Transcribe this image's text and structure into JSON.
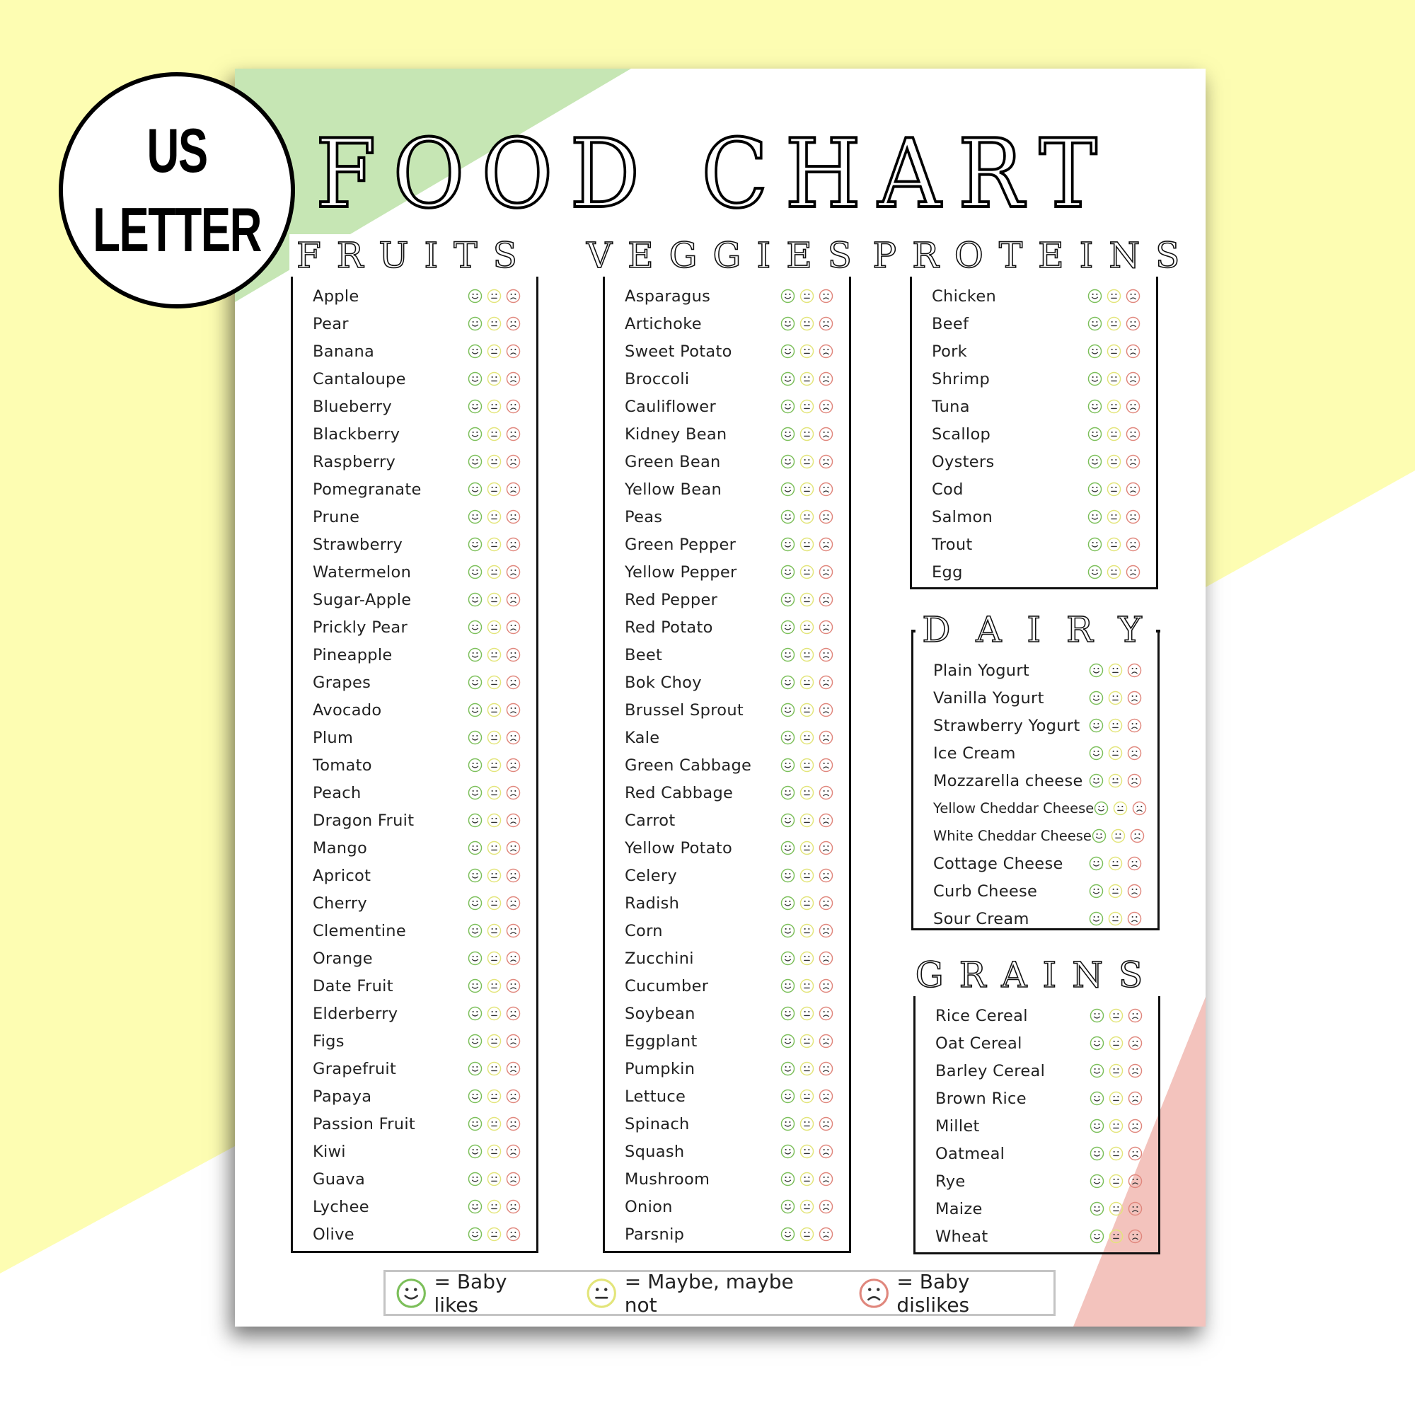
{
  "badge": {
    "line1": "US",
    "line2": "LETTER"
  },
  "title": "FOOD CHART",
  "colors": {
    "likes": "#7cbf5a",
    "maybe": "#e3e57a",
    "dislikes": "#e0877d",
    "background": "#fdfdb2",
    "accent_green": "#c6e6b4",
    "accent_pink": "#f3c3bd"
  },
  "sections": {
    "fruits": {
      "heading": "FRUITS",
      "items": [
        "Apple",
        "Pear",
        "Banana",
        "Cantaloupe",
        "Blueberry",
        "Blackberry",
        "Raspberry",
        "Pomegranate",
        "Prune",
        "Strawberry",
        "Watermelon",
        "Sugar-Apple",
        "Prickly Pear",
        "Pineapple",
        "Grapes",
        "Avocado",
        "Plum",
        "Tomato",
        "Peach",
        "Dragon Fruit",
        "Mango",
        "Apricot",
        "Cherry",
        "Clementine",
        "Orange",
        "Date Fruit",
        "Elderberry",
        "Figs",
        "Grapefruit",
        "Papaya",
        "Passion Fruit",
        "Kiwi",
        "Guava",
        "Lychee",
        "Olive"
      ]
    },
    "veggies": {
      "heading": "VEGGIES",
      "items": [
        "Asparagus",
        "Artichoke",
        "Sweet Potato",
        "Broccoli",
        "Cauliflower",
        "Kidney Bean",
        "Green Bean",
        "Yellow Bean",
        "Peas",
        "Green Pepper",
        "Yellow Pepper",
        "Red Pepper",
        "Red Potato",
        "Beet",
        "Bok Choy",
        "Brussel Sprout",
        "Kale",
        "Green Cabbage",
        "Red Cabbage",
        "Carrot",
        "Yellow Potato",
        "Celery",
        "Radish",
        "Corn",
        "Zucchini",
        "Cucumber",
        "Soybean",
        "Eggplant",
        "Pumpkin",
        "Lettuce",
        "Spinach",
        "Squash",
        "Mushroom",
        "Onion",
        "Parsnip"
      ]
    },
    "proteins": {
      "heading": "PROTEINS",
      "items": [
        "Chicken",
        "Beef",
        "Pork",
        "Shrimp",
        "Tuna",
        "Scallop",
        "Oysters",
        "Cod",
        "Salmon",
        "Trout",
        "Egg"
      ]
    },
    "dairy": {
      "heading": "D A I R Y",
      "items": [
        "Plain Yogurt",
        "Vanilla Yogurt",
        "Strawberry Yogurt",
        "Ice Cream",
        "Mozzarella cheese",
        "Yellow Cheddar Cheese",
        "White Cheddar Cheese",
        "Cottage Cheese",
        "Curb Cheese",
        "Sour Cream"
      ]
    },
    "grains": {
      "heading": "GRAINS",
      "items": [
        "Rice Cereal",
        "Oat Cereal",
        "Barley Cereal",
        "Brown Rice",
        "Millet",
        "Oatmeal",
        "Rye",
        "Maize",
        "Wheat"
      ]
    }
  },
  "legend": {
    "likes": "= Baby likes",
    "maybe": "= Maybe, maybe not",
    "dislikes": "= Baby dislikes"
  }
}
